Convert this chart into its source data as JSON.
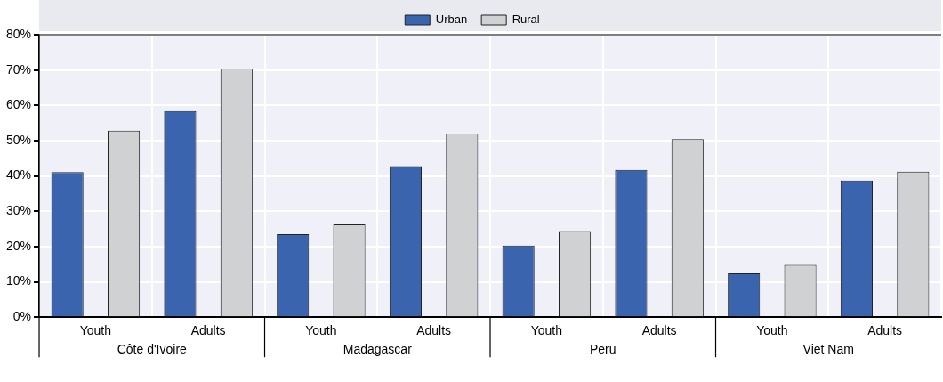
{
  "chart_data": {
    "type": "bar",
    "categories": [
      "Youth",
      "Adults",
      "Youth",
      "Adults",
      "Youth",
      "Adults",
      "Youth",
      "Adults"
    ],
    "series": [
      {
        "name": "Urban",
        "color": "#3a64ad",
        "values": [
          41.1,
          58.4,
          23.5,
          42.8,
          20.3,
          41.7,
          12.4,
          38.7
        ]
      },
      {
        "name": "Rural",
        "color": "#d0d1d3",
        "values": [
          52.8,
          70.4,
          26.3,
          52.0,
          24.4,
          50.4,
          14.8,
          41.2
        ]
      }
    ],
    "annotations": [
      "Côte d'Ivoire",
      "Madagascar",
      "Peru",
      "Viet Nam"
    ],
    "ylim": [
      0,
      80
    ],
    "yticks": [
      {
        "value": 0,
        "label": "0%"
      },
      {
        "value": 10,
        "label": "10%"
      },
      {
        "value": 20,
        "label": "20%"
      },
      {
        "value": 30,
        "label": "30%"
      },
      {
        "value": 40,
        "label": "40%"
      },
      {
        "value": 50,
        "label": "50%"
      },
      {
        "value": 60,
        "label": "60%"
      },
      {
        "value": 70,
        "label": "70%"
      },
      {
        "value": 80,
        "label": "80%"
      }
    ],
    "grid": true,
    "legend": "top"
  }
}
